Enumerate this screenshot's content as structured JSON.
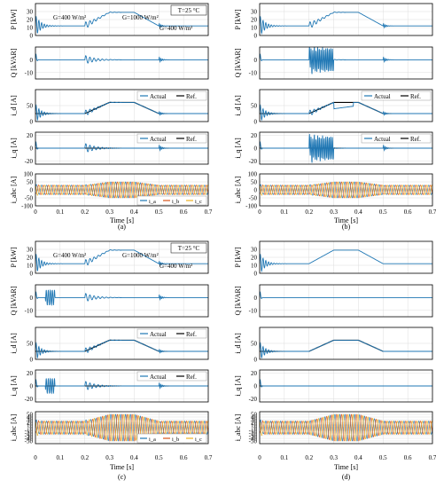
{
  "colors": {
    "actual": "#1f77b4",
    "ref": "#000000",
    "ia": "#1f77b4",
    "ib": "#d95319",
    "ic": "#edb120"
  },
  "panel_letters": [
    "(a)",
    "(b)",
    "(c)",
    "(d)"
  ],
  "shared": {
    "xlabel": "Time [s]",
    "ylabels": {
      "P": "P [kW]",
      "Q": "Q [kVAR]",
      "id": "i_d [A]",
      "iq": "i_q [A]",
      "iabc": "i_abc [A]"
    },
    "legend_actual": "Actual",
    "legend_ref": "Ref.",
    "legend_iabc": [
      "i_a",
      "i_b",
      "i_c"
    ]
  },
  "chart_data": [
    {
      "type": "line",
      "panel": "(a)",
      "x_ticks": [
        0,
        0.1,
        0.2,
        0.3,
        0.4,
        0.5,
        0.6,
        0.7
      ],
      "xlim": [
        0,
        0.7
      ],
      "annotations": [
        "T=25 °C",
        "G=400 W/m²",
        "G=1000 W/m²",
        "G=400 W/m²"
      ],
      "P": {
        "ylim": [
          0,
          40
        ],
        "yticks": [
          0,
          10,
          20,
          30
        ],
        "x": [
          0,
          0.2,
          0.3,
          0.4,
          0.5,
          0.7
        ],
        "values": [
          12,
          12,
          29,
          29,
          12,
          12
        ]
      },
      "Q": {
        "ylim": [
          -15,
          10
        ],
        "yticks": [
          -10,
          0
        ],
        "x": [
          0,
          0.7
        ],
        "values": [
          0,
          0
        ]
      },
      "id": {
        "ylim": [
          0,
          100
        ],
        "yticks": [
          0,
          50
        ],
        "x": [
          0,
          0.2,
          0.3,
          0.4,
          0.5,
          0.7
        ],
        "ref": [
          25,
          25,
          60,
          60,
          25,
          25
        ]
      },
      "iq": {
        "ylim": [
          -25,
          25
        ],
        "yticks": [
          -20,
          0,
          20
        ],
        "x": [
          0,
          0.7
        ],
        "ref": [
          0,
          0
        ]
      },
      "iabc": {
        "ylim": [
          -100,
          100
        ],
        "yticks": [
          -100,
          -50,
          0,
          50,
          100
        ],
        "x": [
          0,
          0.2,
          0.3,
          0.4,
          0.5,
          0.7
        ],
        "amplitude": [
          30,
          30,
          50,
          50,
          30,
          30
        ]
      }
    },
    {
      "type": "line",
      "panel": "(b)",
      "x_ticks": [
        0,
        0.1,
        0.2,
        0.3,
        0.4,
        0.5,
        0.6,
        0.7
      ],
      "xlim": [
        0,
        0.7
      ],
      "P": {
        "ylim": [
          0,
          40
        ],
        "x": [
          0,
          0.2,
          0.3,
          0.4,
          0.5,
          0.7
        ],
        "values": [
          12,
          12,
          29,
          29,
          12,
          12
        ]
      },
      "Q": {
        "ylim": [
          -15,
          10
        ],
        "x": [
          0,
          0.7
        ],
        "values": [
          0,
          0
        ]
      },
      "id": {
        "ylim": [
          0,
          100
        ],
        "x": [
          0,
          0.2,
          0.3,
          0.4,
          0.5,
          0.7
        ],
        "ref": [
          25,
          25,
          60,
          60,
          25,
          25
        ]
      },
      "iq": {
        "ylim": [
          -25,
          25
        ],
        "x": [
          0,
          0.7
        ],
        "ref": [
          0,
          0
        ]
      },
      "iabc": {
        "ylim": [
          -100,
          100
        ],
        "x": [
          0,
          0.2,
          0.3,
          0.4,
          0.5,
          0.7
        ],
        "amplitude": [
          30,
          30,
          50,
          50,
          30,
          30
        ]
      }
    },
    {
      "type": "line",
      "panel": "(c)",
      "x_ticks": [
        0,
        0.1,
        0.2,
        0.3,
        0.4,
        0.5,
        0.6,
        0.7
      ],
      "xlim": [
        0,
        0.7
      ],
      "annotations": [
        "T=25 °C",
        "G=400 W/m²",
        "G=1000 W/m²",
        "G=400 W/m²"
      ],
      "P": {
        "ylim": [
          0,
          40
        ],
        "yticks": [
          0,
          10,
          20,
          30
        ],
        "x": [
          0,
          0.2,
          0.3,
          0.4,
          0.5,
          0.7
        ],
        "values": [
          12,
          12,
          29,
          29,
          12,
          12
        ]
      },
      "Q": {
        "ylim": [
          -15,
          10
        ],
        "yticks": [
          -10,
          0
        ],
        "x": [
          0,
          0.7
        ],
        "values": [
          0,
          0
        ]
      },
      "id": {
        "ylim": [
          0,
          100
        ],
        "yticks": [
          0,
          50
        ],
        "x": [
          0,
          0.2,
          0.3,
          0.4,
          0.5,
          0.7
        ],
        "ref": [
          25,
          25,
          60,
          60,
          25,
          25
        ]
      },
      "iq": {
        "ylim": [
          -25,
          25
        ],
        "yticks": [
          -20,
          0,
          20
        ],
        "x": [
          0,
          0.7
        ],
        "ref": [
          0,
          0
        ]
      },
      "iabc": {
        "ylim": [
          -60,
          60
        ],
        "yticks": [
          -50,
          -40,
          -30,
          -20,
          -10,
          0,
          10,
          20,
          30,
          40,
          50
        ],
        "x": [
          0,
          0.2,
          0.3,
          0.4,
          0.5,
          0.7
        ],
        "amplitude": [
          25,
          25,
          50,
          50,
          25,
          25
        ]
      }
    },
    {
      "type": "line",
      "panel": "(d)",
      "x_ticks": [
        0,
        0.1,
        0.2,
        0.3,
        0.4,
        0.5,
        0.6,
        0.7
      ],
      "xlim": [
        0,
        0.7
      ],
      "P": {
        "ylim": [
          0,
          40
        ],
        "x": [
          0,
          0.2,
          0.3,
          0.4,
          0.5,
          0.7
        ],
        "values": [
          12,
          12,
          29,
          29,
          12,
          12
        ]
      },
      "Q": {
        "ylim": [
          -15,
          10
        ],
        "x": [
          0,
          0.7
        ],
        "values": [
          0,
          0
        ]
      },
      "id": {
        "ylim": [
          0,
          100
        ],
        "x": [
          0,
          0.2,
          0.3,
          0.4,
          0.5,
          0.7
        ],
        "ref": [
          25,
          25,
          60,
          60,
          25,
          25
        ]
      },
      "iq": {
        "ylim": [
          -25,
          25
        ],
        "x": [
          0,
          0.7
        ],
        "ref": [
          0,
          0
        ]
      },
      "iabc": {
        "ylim": [
          -60,
          60
        ],
        "x": [
          0,
          0.2,
          0.3,
          0.4,
          0.5,
          0.7
        ],
        "amplitude": [
          25,
          25,
          50,
          50,
          25,
          25
        ]
      }
    }
  ]
}
